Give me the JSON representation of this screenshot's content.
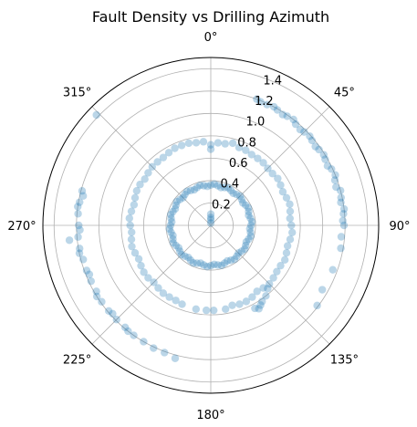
{
  "chart_data": {
    "type": "scatter",
    "projection": "polar",
    "title": "Fault Density vs Drilling Azimuth",
    "theta_zero_location": "N",
    "theta_direction": "clockwise",
    "theta_ticks": [
      {
        "deg": 0,
        "label": "0°"
      },
      {
        "deg": 45,
        "label": "45°"
      },
      {
        "deg": 90,
        "label": "90°"
      },
      {
        "deg": 135,
        "label": "135°"
      },
      {
        "deg": 180,
        "label": "180°"
      },
      {
        "deg": 225,
        "label": "225°"
      },
      {
        "deg": 270,
        "label": "270°"
      },
      {
        "deg": 315,
        "label": "315°"
      }
    ],
    "rlim": [
      0,
      1.5
    ],
    "r_ticks": [
      {
        "value": 0.2,
        "label": "0.2"
      },
      {
        "value": 0.4,
        "label": "0.4"
      },
      {
        "value": 0.6,
        "label": "0.6"
      },
      {
        "value": 0.8,
        "label": "0.8"
      },
      {
        "value": 1.0,
        "label": "1.0"
      },
      {
        "value": 1.2,
        "label": "1.2"
      },
      {
        "value": 1.4,
        "label": "1.4"
      }
    ],
    "r_label_angle_deg": 22.5,
    "grid": true,
    "marker_color": "#1f77b4",
    "marker_alpha": 0.3,
    "series": [
      {
        "points": [
          [
            0,
            0.02
          ],
          [
            0,
            0.05
          ],
          [
            0,
            0.07
          ],
          [
            0,
            0.1
          ],
          [
            0,
            0.36
          ],
          [
            10,
            0.36
          ],
          [
            20,
            0.36
          ],
          [
            30,
            0.36
          ],
          [
            40,
            0.36
          ],
          [
            50,
            0.36
          ],
          [
            60,
            0.36
          ],
          [
            70,
            0.36
          ],
          [
            80,
            0.36
          ],
          [
            90,
            0.36
          ],
          [
            100,
            0.36
          ],
          [
            110,
            0.36
          ],
          [
            120,
            0.36
          ],
          [
            130,
            0.36
          ],
          [
            140,
            0.36
          ],
          [
            150,
            0.36
          ],
          [
            160,
            0.36
          ],
          [
            170,
            0.36
          ],
          [
            180,
            0.36
          ],
          [
            190,
            0.36
          ],
          [
            200,
            0.36
          ],
          [
            210,
            0.36
          ],
          [
            220,
            0.36
          ],
          [
            230,
            0.36
          ],
          [
            240,
            0.36
          ],
          [
            250,
            0.36
          ],
          [
            260,
            0.36
          ],
          [
            270,
            0.36
          ],
          [
            280,
            0.36
          ],
          [
            290,
            0.36
          ],
          [
            300,
            0.36
          ],
          [
            310,
            0.36
          ],
          [
            320,
            0.36
          ],
          [
            330,
            0.36
          ],
          [
            340,
            0.36
          ],
          [
            350,
            0.36
          ],
          [
            5,
            0.37
          ],
          [
            15,
            0.35
          ],
          [
            25,
            0.37
          ],
          [
            35,
            0.35
          ],
          [
            45,
            0.37
          ],
          [
            55,
            0.35
          ],
          [
            65,
            0.37
          ],
          [
            75,
            0.35
          ],
          [
            85,
            0.37
          ],
          [
            95,
            0.35
          ],
          [
            105,
            0.37
          ],
          [
            115,
            0.35
          ],
          [
            125,
            0.37
          ],
          [
            135,
            0.35
          ],
          [
            145,
            0.37
          ],
          [
            155,
            0.35
          ],
          [
            165,
            0.37
          ],
          [
            175,
            0.35
          ],
          [
            185,
            0.37
          ],
          [
            195,
            0.35
          ],
          [
            205,
            0.37
          ],
          [
            215,
            0.35
          ],
          [
            225,
            0.37
          ],
          [
            235,
            0.35
          ],
          [
            245,
            0.37
          ],
          [
            255,
            0.35
          ],
          [
            265,
            0.37
          ],
          [
            275,
            0.35
          ],
          [
            285,
            0.37
          ],
          [
            295,
            0.35
          ],
          [
            305,
            0.37
          ],
          [
            315,
            0.35
          ],
          [
            325,
            0.37
          ],
          [
            335,
            0.35
          ],
          [
            345,
            0.37
          ],
          [
            355,
            0.35
          ],
          [
            20,
            0.74
          ],
          [
            30,
            0.73
          ],
          [
            40,
            0.73
          ],
          [
            50,
            0.72
          ],
          [
            60,
            0.72
          ],
          [
            70,
            0.72
          ],
          [
            80,
            0.72
          ],
          [
            90,
            0.72
          ],
          [
            100,
            0.72
          ],
          [
            110,
            0.72
          ],
          [
            120,
            0.72
          ],
          [
            130,
            0.73
          ],
          [
            140,
            0.73
          ],
          [
            150,
            0.74
          ],
          [
            160,
            0.75
          ],
          [
            170,
            0.76
          ],
          [
            178,
            0.76
          ],
          [
            25,
            0.74
          ],
          [
            35,
            0.73
          ],
          [
            45,
            0.72
          ],
          [
            55,
            0.73
          ],
          [
            65,
            0.71
          ],
          [
            75,
            0.73
          ],
          [
            85,
            0.71
          ],
          [
            95,
            0.73
          ],
          [
            105,
            0.71
          ],
          [
            115,
            0.73
          ],
          [
            125,
            0.72
          ],
          [
            135,
            0.74
          ],
          [
            145,
            0.72
          ],
          [
            155,
            0.75
          ],
          [
            165,
            0.74
          ],
          [
            183,
            0.76
          ],
          [
            190,
            0.76
          ],
          [
            200,
            0.75
          ],
          [
            210,
            0.74
          ],
          [
            220,
            0.73
          ],
          [
            230,
            0.73
          ],
          [
            240,
            0.72
          ],
          [
            250,
            0.72
          ],
          [
            260,
            0.72
          ],
          [
            270,
            0.72
          ],
          [
            280,
            0.72
          ],
          [
            290,
            0.72
          ],
          [
            300,
            0.73
          ],
          [
            310,
            0.73
          ],
          [
            320,
            0.74
          ],
          [
            330,
            0.75
          ],
          [
            340,
            0.76
          ],
          [
            205,
            0.74
          ],
          [
            215,
            0.74
          ],
          [
            225,
            0.72
          ],
          [
            235,
            0.73
          ],
          [
            245,
            0.71
          ],
          [
            255,
            0.73
          ],
          [
            265,
            0.71
          ],
          [
            275,
            0.73
          ],
          [
            285,
            0.71
          ],
          [
            295,
            0.73
          ],
          [
            305,
            0.72
          ],
          [
            315,
            0.74
          ],
          [
            325,
            0.74
          ],
          [
            335,
            0.76
          ],
          [
            0,
            0.72
          ],
          [
            0,
            0.68
          ],
          [
            5,
            0.74
          ],
          [
            10,
            0.74
          ],
          [
            15,
            0.76
          ],
          [
            355,
            0.75
          ],
          [
            350,
            0.75
          ],
          [
            345,
            0.76
          ],
          [
            138,
            0.76
          ],
          [
            142,
            0.8
          ],
          [
            146,
            0.82
          ],
          [
            150,
            0.86
          ],
          [
            152,
            0.84
          ],
          [
            148,
            0.84
          ],
          [
            20,
            1.2
          ],
          [
            25,
            1.19
          ],
          [
            30,
            1.19
          ],
          [
            35,
            1.19
          ],
          [
            40,
            1.18
          ],
          [
            45,
            1.18
          ],
          [
            50,
            1.18
          ],
          [
            55,
            1.18
          ],
          [
            60,
            1.18
          ],
          [
            65,
            1.19
          ],
          [
            70,
            1.18
          ],
          [
            75,
            1.2
          ],
          [
            80,
            1.18
          ],
          [
            85,
            1.19
          ],
          [
            90,
            1.19
          ],
          [
            22,
            1.19
          ],
          [
            28,
            1.2
          ],
          [
            33,
            1.18
          ],
          [
            38,
            1.2
          ],
          [
            43,
            1.17
          ],
          [
            48,
            1.19
          ],
          [
            53,
            1.17
          ],
          [
            58,
            1.19
          ],
          [
            63,
            1.17
          ],
          [
            68,
            1.2
          ],
          [
            73,
            1.17
          ],
          [
            78,
            1.19
          ],
          [
            83,
            1.2
          ],
          [
            88,
            1.18
          ],
          [
            95,
            1.17
          ],
          [
            100,
            1.18
          ],
          [
            110,
            1.16
          ],
          [
            120,
            1.15
          ],
          [
            195,
            1.23
          ],
          [
            200,
            1.21
          ],
          [
            205,
            1.21
          ],
          [
            210,
            1.2
          ],
          [
            215,
            1.2
          ],
          [
            220,
            1.19
          ],
          [
            225,
            1.19
          ],
          [
            230,
            1.19
          ],
          [
            235,
            1.19
          ],
          [
            240,
            1.18
          ],
          [
            245,
            1.18
          ],
          [
            250,
            1.18
          ],
          [
            255,
            1.18
          ],
          [
            260,
            1.19
          ],
          [
            265,
            1.19
          ],
          [
            270,
            1.18
          ],
          [
            275,
            1.19
          ],
          [
            280,
            1.19
          ],
          [
            285,
            1.19
          ],
          [
            218,
            1.2
          ],
          [
            228,
            1.18
          ],
          [
            238,
            1.2
          ],
          [
            248,
            1.17
          ],
          [
            258,
            1.2
          ],
          [
            268,
            1.17
          ],
          [
            278,
            1.2
          ],
          [
            283,
            1.17
          ],
          [
            264,
            1.27
          ],
          [
            314,
            1.42
          ],
          [
            127,
            1.19
          ]
        ]
      }
    ]
  }
}
